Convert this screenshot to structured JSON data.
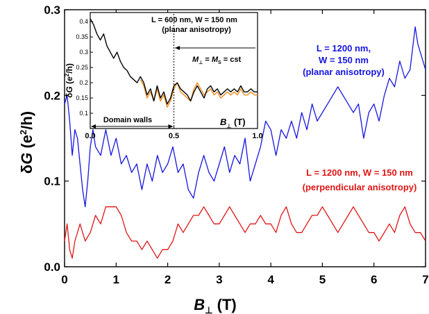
{
  "chart_data": [
    {
      "type": "line",
      "title": "",
      "xlabel": {
        "main": "B",
        "sub": "⊥",
        "unit": " (T)"
      },
      "ylabel": {
        "pre": "δ",
        "main": "G",
        "unit": " (e",
        "sup": "2",
        "tail": "/h)"
      },
      "xlim": [
        0,
        7
      ],
      "ylim": [
        0,
        0.3
      ],
      "xticks": [
        "0",
        "1",
        "2",
        "3",
        "4",
        "5",
        "6",
        "7"
      ],
      "yticks": [
        "0.0",
        "0.1",
        "0.2",
        "0.3"
      ],
      "series": [
        {
          "name": "planar",
          "color": "#1515e0",
          "label_lines": [
            "L = 1200 nm,",
            "W = 150 nm",
            "(planar anisotropy)"
          ],
          "x": [
            0.0,
            0.05,
            0.1,
            0.15,
            0.2,
            0.25,
            0.3,
            0.35,
            0.4,
            0.45,
            0.5,
            0.55,
            0.6,
            0.7,
            0.8,
            0.9,
            1.0,
            1.1,
            1.2,
            1.3,
            1.4,
            1.5,
            1.6,
            1.7,
            1.8,
            1.9,
            2.0,
            2.1,
            2.2,
            2.3,
            2.4,
            2.5,
            2.6,
            2.7,
            2.8,
            2.9,
            3.0,
            3.1,
            3.2,
            3.3,
            3.4,
            3.5,
            3.6,
            3.7,
            3.8,
            3.9,
            4.0,
            4.1,
            4.2,
            4.3,
            4.4,
            4.5,
            4.6,
            4.7,
            4.8,
            4.9,
            5.0,
            5.1,
            5.2,
            5.3,
            5.4,
            5.5,
            5.6,
            5.7,
            5.8,
            5.9,
            6.0,
            6.1,
            6.2,
            6.3,
            6.4,
            6.5,
            6.6,
            6.7,
            6.8,
            6.85,
            6.9,
            6.95,
            7.0
          ],
          "y": [
            0.19,
            0.2,
            0.17,
            0.13,
            0.16,
            0.15,
            0.12,
            0.09,
            0.07,
            0.1,
            0.14,
            0.16,
            0.14,
            0.13,
            0.16,
            0.13,
            0.15,
            0.12,
            0.13,
            0.11,
            0.12,
            0.09,
            0.12,
            0.1,
            0.13,
            0.11,
            0.12,
            0.14,
            0.11,
            0.12,
            0.09,
            0.08,
            0.11,
            0.13,
            0.11,
            0.1,
            0.12,
            0.14,
            0.11,
            0.13,
            0.12,
            0.15,
            0.1,
            0.12,
            0.14,
            0.17,
            0.16,
            0.13,
            0.16,
            0.15,
            0.17,
            0.15,
            0.18,
            0.16,
            0.19,
            0.17,
            0.18,
            0.19,
            0.2,
            0.21,
            0.2,
            0.19,
            0.18,
            0.19,
            0.15,
            0.18,
            0.19,
            0.17,
            0.2,
            0.22,
            0.21,
            0.24,
            0.22,
            0.23,
            0.28,
            0.26,
            0.25,
            0.24,
            0.23
          ]
        },
        {
          "name": "perpendicular",
          "color": "#e01515",
          "label_lines": [
            "L = 1200 nm, W = 150 nm",
            "(perpendicular anisotropy)"
          ],
          "x": [
            0.0,
            0.05,
            0.1,
            0.15,
            0.2,
            0.3,
            0.4,
            0.5,
            0.6,
            0.7,
            0.8,
            0.9,
            1.0,
            1.1,
            1.2,
            1.3,
            1.4,
            1.5,
            1.6,
            1.7,
            1.8,
            1.9,
            2.0,
            2.1,
            2.2,
            2.3,
            2.4,
            2.5,
            2.6,
            2.7,
            2.8,
            2.9,
            3.0,
            3.1,
            3.2,
            3.3,
            3.4,
            3.5,
            3.6,
            3.7,
            3.8,
            3.9,
            4.0,
            4.1,
            4.2,
            4.3,
            4.4,
            4.5,
            4.6,
            4.7,
            4.8,
            4.9,
            5.0,
            5.1,
            5.2,
            5.3,
            5.4,
            5.5,
            5.6,
            5.7,
            5.8,
            5.9,
            6.0,
            6.1,
            6.2,
            6.3,
            6.4,
            6.5,
            6.6,
            6.7,
            6.8,
            6.9,
            7.0
          ],
          "y": [
            0.03,
            0.05,
            0.02,
            0.01,
            0.03,
            0.05,
            0.03,
            0.04,
            0.06,
            0.05,
            0.07,
            0.07,
            0.07,
            0.06,
            0.04,
            0.03,
            0.03,
            0.02,
            0.03,
            0.02,
            0.01,
            0.02,
            0.02,
            0.03,
            0.05,
            0.04,
            0.05,
            0.06,
            0.06,
            0.07,
            0.06,
            0.05,
            0.05,
            0.06,
            0.07,
            0.06,
            0.05,
            0.04,
            0.05,
            0.05,
            0.06,
            0.05,
            0.05,
            0.04,
            0.06,
            0.07,
            0.05,
            0.04,
            0.04,
            0.05,
            0.06,
            0.06,
            0.07,
            0.06,
            0.05,
            0.04,
            0.05,
            0.06,
            0.07,
            0.06,
            0.05,
            0.04,
            0.04,
            0.03,
            0.04,
            0.05,
            0.04,
            0.06,
            0.07,
            0.05,
            0.04,
            0.04,
            0.03
          ]
        }
      ]
    },
    {
      "type": "line",
      "title": "",
      "xlabel": {
        "main": "B",
        "sub": "⊥",
        "unit": " (T)"
      },
      "ylabel": {
        "pre": "δ",
        "main": "G",
        "unit": " (e",
        "sup": "2",
        "tail": "/h)"
      },
      "xlim": [
        0,
        1.0
      ],
      "ylim": [
        0.05,
        0.43
      ],
      "xticks": [
        "0.0",
        "0.5",
        "1.0"
      ],
      "yticks": [
        "0.1",
        "0.15",
        "0.2",
        "0.25",
        "0.3",
        "0.35",
        "0.4"
      ],
      "ytick_values": [
        0.1,
        0.15,
        0.2,
        0.25,
        0.3,
        0.35,
        0.4
      ],
      "header_lines": [
        "L = 600 nm, W = 150 nm",
        "(planar anisotropy)"
      ],
      "domain_walls_label": "Domain walls",
      "saturation_label": {
        "lhs": "M",
        "lhs_sub": "⊥",
        "eq": " = ",
        "rhs": "M",
        "rhs_sub": "S",
        "tail": " = cst"
      },
      "marker_field": 0.5,
      "series": [
        {
          "name": "black",
          "color": "#000000",
          "x": [
            0.0,
            0.02,
            0.04,
            0.06,
            0.08,
            0.1,
            0.12,
            0.14,
            0.16,
            0.18,
            0.2,
            0.22,
            0.24,
            0.26,
            0.28,
            0.3,
            0.32,
            0.34,
            0.36,
            0.38,
            0.4,
            0.42,
            0.44,
            0.46,
            0.48,
            0.5,
            0.52,
            0.54,
            0.56,
            0.58,
            0.6,
            0.62,
            0.64,
            0.66,
            0.68,
            0.7,
            0.72,
            0.74,
            0.76,
            0.78,
            0.8,
            0.82,
            0.84,
            0.86,
            0.88,
            0.9,
            0.92,
            0.94,
            0.96,
            0.98,
            1.0
          ],
          "y": [
            0.41,
            0.39,
            0.36,
            0.34,
            0.36,
            0.32,
            0.3,
            0.28,
            0.3,
            0.27,
            0.25,
            0.24,
            0.22,
            0.21,
            0.2,
            0.22,
            0.2,
            0.16,
            0.18,
            0.14,
            0.19,
            0.15,
            0.17,
            0.13,
            0.15,
            0.19,
            0.2,
            0.18,
            0.17,
            0.16,
            0.14,
            0.17,
            0.19,
            0.17,
            0.15,
            0.18,
            0.19,
            0.17,
            0.18,
            0.16,
            0.17,
            0.18,
            0.17,
            0.18,
            0.17,
            0.19,
            0.17,
            0.17,
            0.18,
            0.17,
            0.17
          ]
        },
        {
          "name": "orange",
          "color": "#f08c1c",
          "x": [
            0.3,
            0.32,
            0.34,
            0.36,
            0.38,
            0.4,
            0.42,
            0.44,
            0.46,
            0.48,
            0.5,
            0.52,
            0.54,
            0.56,
            0.58,
            0.6,
            0.62,
            0.64,
            0.66,
            0.68,
            0.7,
            0.72,
            0.74,
            0.76,
            0.78,
            0.8,
            0.82,
            0.84,
            0.86,
            0.88,
            0.9,
            0.92,
            0.94,
            0.96,
            0.98,
            1.0
          ],
          "y": [
            0.21,
            0.19,
            0.15,
            0.17,
            0.14,
            0.18,
            0.14,
            0.16,
            0.12,
            0.14,
            0.18,
            0.2,
            0.17,
            0.16,
            0.15,
            0.14,
            0.18,
            0.2,
            0.18,
            0.16,
            0.17,
            0.18,
            0.16,
            0.17,
            0.15,
            0.16,
            0.17,
            0.16,
            0.17,
            0.16,
            0.18,
            0.16,
            0.16,
            0.17,
            0.16,
            0.16
          ]
        }
      ]
    }
  ]
}
